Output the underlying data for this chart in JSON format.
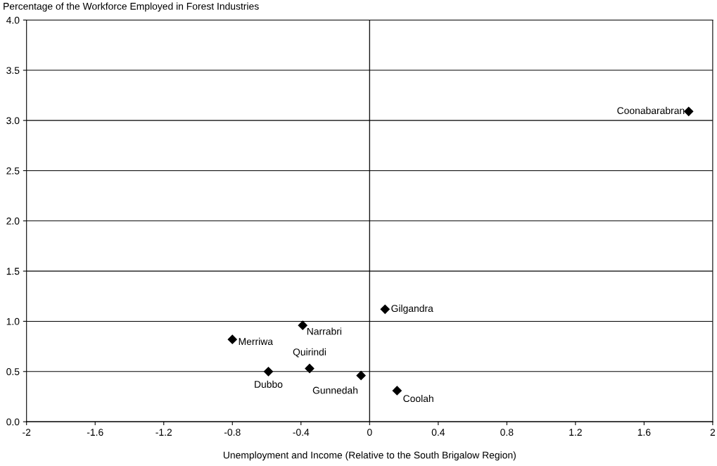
{
  "chart_data": {
    "type": "scatter",
    "ylabel": "Percentage of the Workforce Employed in Forest Industries",
    "xlabel": "Unemployment and Income (Relative to the South Brigalow Region)",
    "x": [
      1.86,
      0.09,
      -0.39,
      -0.8,
      -0.35,
      -0.59,
      -0.05,
      0.16
    ],
    "series": [
      {
        "color": "#000000",
        "values": [
          3.09,
          1.12,
          0.96,
          0.82,
          0.53,
          0.5,
          0.46,
          0.31
        ]
      }
    ],
    "annotations": [
      {
        "text": "Coonabarabran",
        "x": 1.86,
        "y": 3.09
      },
      {
        "text": "Gilgandra",
        "x": 0.09,
        "y": 1.12
      },
      {
        "text": "Narrabri",
        "x": -0.39,
        "y": 0.96
      },
      {
        "text": "Merriwa",
        "x": -0.8,
        "y": 0.82
      },
      {
        "text": "Quirindi",
        "x": -0.35,
        "y": 0.53
      },
      {
        "text": "Dubbo",
        "x": -0.59,
        "y": 0.5
      },
      {
        "text": "Gunnedah",
        "x": -0.05,
        "y": 0.46
      },
      {
        "text": "Coolah",
        "x": 0.16,
        "y": 0.31
      }
    ],
    "xlim": [
      -2,
      2
    ],
    "ylim": [
      0,
      4
    ],
    "xticks": [
      {
        "value": -2,
        "label": "-2"
      },
      {
        "value": -1.6,
        "label": "-1.6"
      },
      {
        "value": -1.2,
        "label": "-1.2"
      },
      {
        "value": -0.8,
        "label": "-0.8"
      },
      {
        "value": -0.4,
        "label": "-0.4"
      },
      0,
      0.4,
      0.8,
      1.2,
      1.6,
      2
    ],
    "yticks": [
      {
        "value": 0,
        "label": "0.0"
      },
      0.5,
      {
        "value": 1,
        "label": "1.0"
      },
      1.5,
      {
        "value": 2,
        "label": "2.0"
      },
      2.5,
      {
        "value": 3,
        "label": "3.0"
      },
      3.5,
      {
        "value": 4,
        "label": "4.0"
      }
    ],
    "ref_lines": [
      {
        "axis": "x",
        "value": 0,
        "color": "#000000"
      }
    ],
    "grid": "y",
    "marker": "diamond"
  }
}
